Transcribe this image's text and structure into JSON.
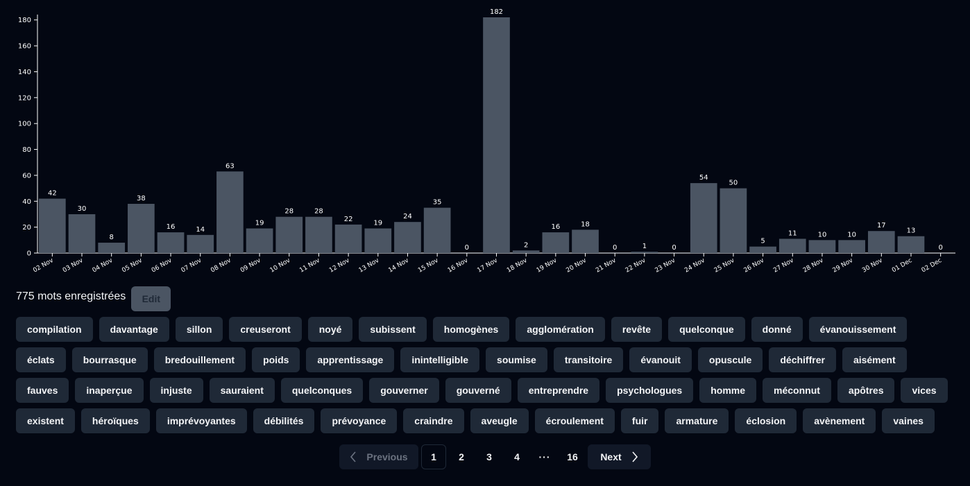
{
  "chart_data": {
    "type": "bar",
    "categories": [
      "02 Nov",
      "03 Nov",
      "04 Nov",
      "05 Nov",
      "06 Nov",
      "07 Nov",
      "08 Nov",
      "09 Nov",
      "10 Nov",
      "11 Nov",
      "12 Nov",
      "13 Nov",
      "14 Nov",
      "15 Nov",
      "16 Nov",
      "17 Nov",
      "18 Nov",
      "19 Nov",
      "20 Nov",
      "21 Nov",
      "22 Nov",
      "23 Nov",
      "24 Nov",
      "25 Nov",
      "26 Nov",
      "27 Nov",
      "28 Nov",
      "29 Nov",
      "30 Nov",
      "01 Dec",
      "02 Dec"
    ],
    "values": [
      42,
      30,
      8,
      38,
      16,
      14,
      63,
      19,
      28,
      28,
      22,
      19,
      24,
      35,
      0,
      182,
      2,
      16,
      18,
      0,
      1,
      0,
      54,
      50,
      5,
      11,
      10,
      10,
      17,
      13,
      0
    ],
    "yticks": [
      "0",
      "20",
      "40",
      "60",
      "80",
      "100",
      "120",
      "140",
      "160",
      "180"
    ],
    "ylim": [
      0,
      182
    ],
    "bar_color": "#4b5563",
    "grid": false
  },
  "summary": {
    "count_text": "775 mots enregistrées",
    "edit_label": "Edit"
  },
  "words": [
    "compilation",
    "davantage",
    "sillon",
    "creuseront",
    "noyé",
    "subissent",
    "homogènes",
    "agglomération",
    "revête",
    "quelconque",
    "donné",
    "évanouissement",
    "éclats",
    "bourrasque",
    "bredouillement",
    "poids",
    "apprentissage",
    "inintelligible",
    "soumise",
    "transitoire",
    "évanouit",
    "opuscule",
    "déchiffrer",
    "aisément",
    "fauves",
    "inaperçue",
    "injuste",
    "sauraient",
    "quelconques",
    "gouverner",
    "gouverné",
    "entreprendre",
    "psychologues",
    "homme",
    "méconnut",
    "apôtres",
    "vices",
    "existent",
    "héroïques",
    "imprévoyantes",
    "débilités",
    "prévoyance",
    "craindre",
    "aveugle",
    "écroulement",
    "fuir",
    "armature",
    "éclosion",
    "avènement",
    "vaines"
  ],
  "pagination": {
    "previous_label": "Previous",
    "next_label": "Next",
    "pages": [
      "1",
      "2",
      "3",
      "4"
    ],
    "ellipsis": "···",
    "last_page": "16",
    "current": "1"
  },
  "colors": {
    "background": "#030712",
    "chip": "#1f2937",
    "bar": "#4b5563"
  }
}
